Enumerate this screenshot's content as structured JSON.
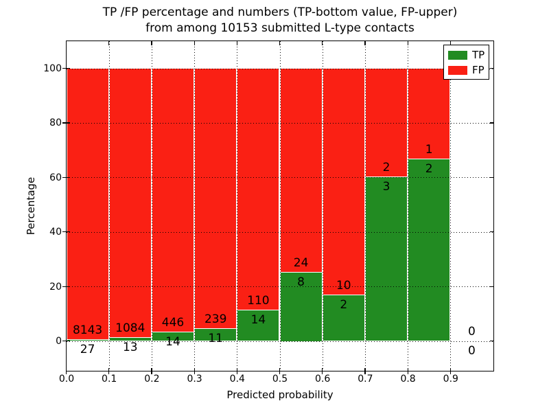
{
  "figure": {
    "title_line1": "TP /FP percentage and numbers (TP-bottom value, FP-upper)",
    "title_line2": "from among 10153 submitted L-type contacts"
  },
  "chart_data": {
    "type": "bar",
    "stacked": true,
    "normalized_to_percent": 100,
    "title": "TP /FP percentage and numbers (TP-bottom value, FP-upper)\nfrom among 10153 submitted L-type contacts",
    "xlabel": "Predicted probability",
    "ylabel": "Percentage",
    "total_contacts": 10153,
    "x_tick_labels": [
      "0.0",
      "0.1",
      "0.2",
      "0.3",
      "0.4",
      "0.5",
      "0.6",
      "0.7",
      "0.8",
      "0.9"
    ],
    "y_tick_values": [
      0,
      20,
      40,
      60,
      80,
      100
    ],
    "xlim": [
      0.0,
      1.0
    ],
    "ylim": [
      -10.8,
      110
    ],
    "grid": true,
    "legend": {
      "position": "upper right",
      "entries": [
        {
          "label": "TP",
          "color": "#228b22"
        },
        {
          "label": "FP",
          "color": "#fa2014"
        }
      ]
    },
    "series": [
      {
        "name": "TP",
        "color": "#228b22"
      },
      {
        "name": "FP",
        "color": "#fa2014"
      }
    ],
    "bins": [
      {
        "range": [
          0.0,
          0.1
        ],
        "tp": 27,
        "fp": 8143,
        "tp_pct": 0.33
      },
      {
        "range": [
          0.1,
          0.2
        ],
        "tp": 13,
        "fp": 1084,
        "tp_pct": 1.19
      },
      {
        "range": [
          0.2,
          0.3
        ],
        "tp": 14,
        "fp": 446,
        "tp_pct": 3.04
      },
      {
        "range": [
          0.3,
          0.4
        ],
        "tp": 11,
        "fp": 239,
        "tp_pct": 4.4
      },
      {
        "range": [
          0.4,
          0.5
        ],
        "tp": 14,
        "fp": 110,
        "tp_pct": 11.29
      },
      {
        "range": [
          0.5,
          0.6
        ],
        "tp": 8,
        "fp": 24,
        "tp_pct": 25.0
      },
      {
        "range": [
          0.6,
          0.7
        ],
        "tp": 2,
        "fp": 10,
        "tp_pct": 16.67
      },
      {
        "range": [
          0.7,
          0.8
        ],
        "tp": 3,
        "fp": 2,
        "tp_pct": 60.0
      },
      {
        "range": [
          0.8,
          0.9
        ],
        "tp": 2,
        "fp": 1,
        "tp_pct": 66.67
      },
      {
        "range": [
          0.9,
          1.0
        ],
        "tp": 0,
        "fp": 0,
        "tp_pct": 0.0
      }
    ]
  }
}
